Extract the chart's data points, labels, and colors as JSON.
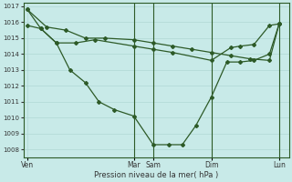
{
  "background_color": "#c8eae8",
  "grid_color": "#b0d8d4",
  "line_color": "#2d5a27",
  "marker_color": "#2d5a27",
  "xlabel": "Pression niveau de la mer( hPa )",
  "ylim": [
    1007.5,
    1017.2
  ],
  "yticks": [
    1008,
    1009,
    1010,
    1011,
    1012,
    1013,
    1014,
    1015,
    1016,
    1017
  ],
  "xtick_labels": [
    "Ven",
    "Mar",
    "Sam",
    "Dim",
    "Lun"
  ],
  "xtick_positions": [
    0,
    5.5,
    6.5,
    9.5,
    13
  ],
  "total_xlim": [
    -0.2,
    13.5
  ],
  "vlines_x": [
    5.5,
    6.5,
    9.5,
    13
  ],
  "series1_x": [
    0,
    1,
    2,
    3,
    4,
    5.5,
    6.5,
    7.5,
    8.5,
    9.5,
    10.5,
    11.5,
    12.5,
    13
  ],
  "series1_y": [
    1016.8,
    1015.7,
    1015.5,
    1015.0,
    1015.0,
    1014.9,
    1014.7,
    1014.5,
    1014.3,
    1014.1,
    1013.9,
    1013.7,
    1013.6,
    1015.9
  ],
  "series2_x": [
    0,
    0.7,
    1.5,
    2.2,
    3.0,
    3.7,
    4.5,
    5.5,
    6.5,
    7.3,
    8.0,
    8.7,
    9.5,
    10.3,
    11.0,
    11.7,
    12.5,
    13
  ],
  "series2_y": [
    1016.8,
    1015.6,
    1014.7,
    1013.0,
    1012.2,
    1011.0,
    1010.5,
    1010.1,
    1008.3,
    1008.3,
    1008.3,
    1009.5,
    1011.3,
    1013.5,
    1013.5,
    1013.6,
    1014.0,
    1015.9
  ],
  "series3_x": [
    0,
    0.7,
    1.5,
    2.5,
    3.5,
    5.5,
    6.5,
    7.5,
    9.5,
    10.5,
    11.0,
    11.7,
    12.5,
    13
  ],
  "series3_y": [
    1015.8,
    1015.6,
    1014.7,
    1014.7,
    1014.9,
    1014.5,
    1014.3,
    1014.1,
    1013.6,
    1014.4,
    1014.5,
    1014.6,
    1015.8,
    1015.9
  ]
}
